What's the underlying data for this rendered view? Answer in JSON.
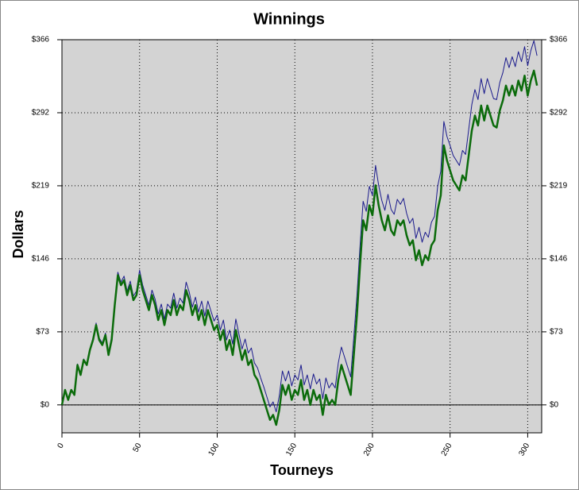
{
  "chart_data": {
    "type": "line",
    "title": "Winnings",
    "x_label": "Tourneys",
    "y_label": "Dollars",
    "xlim": [
      0,
      309
    ],
    "ylim": [
      -28,
      366
    ],
    "xticks": [
      0,
      50,
      100,
      150,
      200,
      250,
      300
    ],
    "yticks": [
      {
        "value": 0,
        "label": "$0"
      },
      {
        "value": 73.2,
        "label": "$73"
      },
      {
        "value": 146.4,
        "label": "$146"
      },
      {
        "value": 219.6,
        "label": "$219"
      },
      {
        "value": 292.8,
        "label": "$292"
      },
      {
        "value": 366,
        "label": "$366"
      }
    ],
    "grid": true,
    "x": [
      0,
      2,
      4,
      6,
      8,
      10,
      12,
      14,
      16,
      18,
      20,
      22,
      24,
      26,
      28,
      30,
      32,
      34,
      36,
      38,
      40,
      42,
      44,
      46,
      48,
      50,
      52,
      54,
      56,
      58,
      60,
      62,
      64,
      66,
      68,
      70,
      72,
      74,
      76,
      78,
      80,
      82,
      84,
      86,
      88,
      90,
      92,
      94,
      96,
      98,
      100,
      102,
      104,
      106,
      108,
      110,
      112,
      114,
      116,
      118,
      120,
      122,
      124,
      126,
      128,
      130,
      132,
      134,
      136,
      138,
      140,
      142,
      144,
      146,
      148,
      150,
      152,
      154,
      156,
      158,
      160,
      162,
      164,
      166,
      168,
      170,
      172,
      174,
      176,
      178,
      180,
      182,
      184,
      186,
      188,
      190,
      192,
      194,
      196,
      198,
      200,
      202,
      204,
      206,
      208,
      210,
      212,
      214,
      216,
      218,
      220,
      222,
      224,
      226,
      228,
      230,
      232,
      234,
      236,
      238,
      240,
      242,
      244,
      246,
      248,
      250,
      252,
      254,
      256,
      258,
      260,
      262,
      264,
      266,
      268,
      270,
      272,
      274,
      276,
      278,
      280,
      282,
      284,
      286,
      288,
      290,
      292,
      294,
      296,
      298,
      300,
      302,
      304,
      306
    ],
    "series": [
      {
        "color": "#1a1a8c",
        "width": 1,
        "values": [
          0,
          15,
          5,
          15,
          10,
          41,
          31,
          46,
          41,
          56,
          67,
          82,
          67,
          62,
          72,
          53,
          68,
          103,
          133,
          123,
          129,
          114,
          124,
          109,
          114,
          135,
          120,
          110,
          100,
          115,
          106,
          91,
          101,
          86,
          101,
          97,
          112,
          97,
          107,
          102,
          123,
          113,
          98,
          108,
          93,
          104,
          89,
          104,
          94,
          84,
          90,
          75,
          85,
          65,
          75,
          61,
          86,
          71,
          56,
          66,
          52,
          57,
          42,
          37,
          27,
          18,
          8,
          -2,
          3,
          -7,
          9,
          34,
          24,
          34,
          19,
          30,
          25,
          40,
          20,
          30,
          16,
          31,
          21,
          26,
          6,
          27,
          17,
          22,
          17,
          42,
          58,
          48,
          38,
          28,
          68,
          109,
          159,
          204,
          194,
          219,
          210,
          240,
          220,
          205,
          195,
          211,
          196,
          191,
          206,
          201,
          207,
          192,
          182,
          187,
          167,
          178,
          163,
          173,
          168,
          183,
          189,
          219,
          234,
          284,
          269,
          260,
          250,
          245,
          240,
          255,
          251,
          276,
          301,
          316,
          306,
          327,
          312,
          327,
          317,
          307,
          306,
          323,
          333,
          348,
          338,
          349,
          339,
          354,
          344,
          359,
          340,
          355,
          365,
          350
        ]
      },
      {
        "color": "#0b6b0b",
        "width": 2.5,
        "values": [
          0,
          15,
          5,
          15,
          10,
          40,
          30,
          45,
          40,
          55,
          65,
          80,
          65,
          60,
          70,
          50,
          65,
          100,
          130,
          120,
          125,
          110,
          120,
          105,
          110,
          130,
          115,
          105,
          95,
          110,
          100,
          85,
          95,
          80,
          95,
          90,
          105,
          90,
          100,
          95,
          115,
          105,
          90,
          100,
          85,
          95,
          80,
          95,
          85,
          75,
          80,
          65,
          75,
          55,
          65,
          50,
          75,
          60,
          45,
          55,
          40,
          45,
          30,
          25,
          15,
          5,
          -5,
          -15,
          -10,
          -20,
          -5,
          20,
          10,
          20,
          5,
          15,
          10,
          25,
          5,
          15,
          0,
          15,
          5,
          10,
          -10,
          10,
          0,
          5,
          0,
          25,
          40,
          30,
          20,
          10,
          50,
          90,
          140,
          185,
          175,
          200,
          190,
          220,
          200,
          185,
          175,
          190,
          175,
          170,
          185,
          180,
          185,
          170,
          160,
          165,
          145,
          155,
          140,
          150,
          145,
          160,
          165,
          195,
          210,
          260,
          245,
          235,
          225,
          220,
          215,
          230,
          225,
          250,
          275,
          290,
          280,
          300,
          285,
          300,
          290,
          280,
          278,
          295,
          305,
          320,
          310,
          320,
          310,
          325,
          315,
          330,
          310,
          325,
          335,
          320
        ]
      }
    ]
  }
}
